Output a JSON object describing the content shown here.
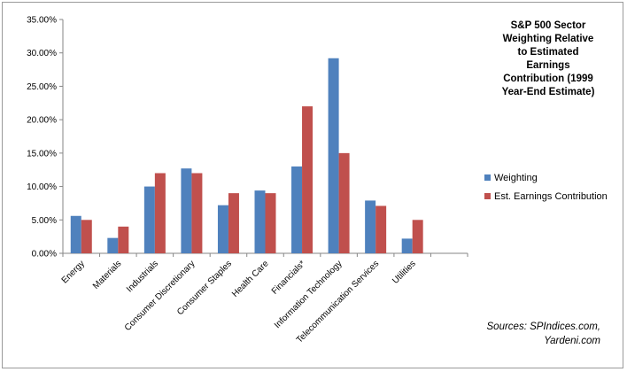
{
  "chart_data": {
    "type": "bar",
    "title": "S&P 500 Sector Weighting Relative to Estimated Earnings Contribution (1999 Year-End Estimate)",
    "title_lines": [
      "S&P 500 Sector",
      "Weighting Relative",
      "to Estimated",
      "Earnings",
      "Contribution (1999",
      "Year-End Estimate)"
    ],
    "categories": [
      "Energy",
      "Materials",
      "Industrials",
      "Consumer Discretionary",
      "Consumer Staples",
      "Health Care",
      "Financials*",
      "Information Technology",
      "Telecommunication Services",
      "Utilities"
    ],
    "series": [
      {
        "name": "Weighting",
        "color": "#4f81bd",
        "values": [
          5.6,
          2.3,
          10.0,
          12.7,
          7.2,
          9.4,
          13.0,
          29.2,
          7.9,
          2.2
        ]
      },
      {
        "name": "Est. Earnings Contribution",
        "color": "#c0504d",
        "values": [
          5.0,
          4.0,
          12.0,
          12.0,
          9.0,
          9.0,
          22.0,
          15.0,
          7.1,
          5.0
        ]
      }
    ],
    "yticks": [
      "0.00%",
      "5.00%",
      "10.00%",
      "15.00%",
      "20.00%",
      "25.00%",
      "30.00%",
      "35.00%"
    ],
    "ylim": [
      0,
      35
    ],
    "grid": false,
    "legend_position": "right"
  },
  "sources": {
    "line1": "Sources: SPIndices.com,",
    "line2": "Yardeni.com"
  }
}
